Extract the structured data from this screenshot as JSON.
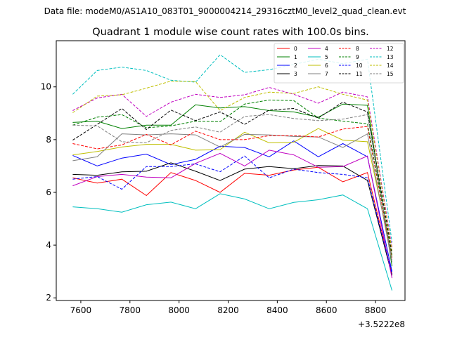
{
  "header_text": "Data file: modeM0/AS1A10_083T01_9000004214_29316cztM0_level2_quad_clean.evt",
  "chart_data": {
    "type": "line",
    "title": "Quadrant 1 module wise count rates with 100.0s bins.",
    "xlabel": "",
    "ylabel": "",
    "x_offset_label": "+3.5222e8",
    "x_offset": 352220000,
    "xlim": [
      352227500,
      352228920
    ],
    "ylim": [
      1.9,
      11.75
    ],
    "x_ticks": [
      7600,
      7800,
      8000,
      8200,
      8400,
      8600,
      8800
    ],
    "y_ticks": [
      2,
      4,
      6,
      8,
      10
    ],
    "grid": false,
    "legend_placement": "top-right",
    "x": [
      352227567,
      352227667,
      352227767,
      352227867,
      352227967,
      352228067,
      352228167,
      352228267,
      352228367,
      352228467,
      352228567,
      352228667,
      352228767,
      352228867
    ],
    "series": [
      {
        "name": "0",
        "color": "#ff0000",
        "dash": "solid",
        "values": [
          6.55,
          6.35,
          6.5,
          5.88,
          6.75,
          6.45,
          6.0,
          6.72,
          6.65,
          6.85,
          6.95,
          6.4,
          6.75,
          2.9
        ]
      },
      {
        "name": "1",
        "color": "#008000",
        "dash": "solid",
        "values": [
          8.65,
          8.7,
          8.42,
          8.55,
          8.55,
          9.32,
          9.2,
          9.25,
          9.1,
          9.05,
          8.85,
          9.35,
          9.3,
          3.2
        ]
      },
      {
        "name": "2",
        "color": "#0000ff",
        "dash": "solid",
        "values": [
          7.4,
          7.0,
          7.3,
          7.45,
          7.05,
          7.25,
          7.75,
          7.7,
          7.35,
          7.95,
          7.35,
          7.85,
          7.35,
          3.0
        ]
      },
      {
        "name": "3",
        "color": "#000000",
        "dash": "solid",
        "values": [
          6.68,
          6.65,
          6.78,
          6.8,
          7.12,
          6.8,
          6.45,
          6.88,
          6.98,
          6.9,
          7.02,
          7.0,
          6.45,
          2.85
        ]
      },
      {
        "name": "4",
        "color": "#c000c0",
        "dash": "solid",
        "values": [
          6.25,
          6.6,
          6.68,
          6.58,
          6.55,
          7.1,
          7.48,
          7.0,
          7.6,
          7.42,
          6.95,
          6.98,
          7.38,
          2.75
        ]
      },
      {
        "name": "5",
        "color": "#00bfbf",
        "dash": "solid",
        "values": [
          5.45,
          5.38,
          5.25,
          5.53,
          5.63,
          5.38,
          5.95,
          5.75,
          5.38,
          5.62,
          5.72,
          5.9,
          5.38,
          2.28
        ]
      },
      {
        "name": "6",
        "color": "#bfbf00",
        "dash": "solid",
        "values": [
          7.42,
          7.55,
          7.72,
          7.82,
          7.82,
          7.6,
          7.62,
          8.28,
          7.88,
          7.9,
          8.42,
          7.98,
          7.92,
          3.55
        ]
      },
      {
        "name": "7",
        "color": "#808080",
        "dash": "solid",
        "values": [
          7.2,
          7.35,
          8.22,
          8.18,
          8.22,
          8.18,
          7.72,
          8.2,
          8.18,
          8.12,
          8.1,
          7.7,
          8.22,
          3.35
        ]
      },
      {
        "name": "8",
        "color": "#ff0000",
        "dash": "dashed",
        "values": [
          7.85,
          7.65,
          7.8,
          8.2,
          7.8,
          8.32,
          8.0,
          8.0,
          8.15,
          8.15,
          8.1,
          8.4,
          8.5,
          3.5
        ]
      },
      {
        "name": "9",
        "color": "#008000",
        "dash": "dashed",
        "values": [
          8.55,
          8.85,
          8.95,
          8.45,
          8.52,
          8.7,
          8.68,
          9.35,
          9.5,
          9.48,
          8.82,
          8.7,
          8.6,
          3.6
        ]
      },
      {
        "name": "10",
        "color": "#0000ff",
        "dash": "dashed",
        "values": [
          6.5,
          6.6,
          6.12,
          6.98,
          6.98,
          7.08,
          6.78,
          7.38,
          6.55,
          6.88,
          6.75,
          6.68,
          6.55,
          2.92
        ]
      },
      {
        "name": "11",
        "color": "#000000",
        "dash": "dashed",
        "values": [
          7.98,
          8.58,
          9.18,
          8.38,
          9.12,
          8.72,
          9.05,
          8.58,
          9.12,
          9.18,
          8.82,
          9.42,
          9.05,
          3.7
        ]
      },
      {
        "name": "12",
        "color": "#c000c0",
        "dash": "dashed",
        "values": [
          9.1,
          9.58,
          9.72,
          8.88,
          9.42,
          9.72,
          9.6,
          9.7,
          9.98,
          9.72,
          9.38,
          9.8,
          9.62,
          3.9
        ]
      },
      {
        "name": "13",
        "color": "#00bfbf",
        "dash": "dashed",
        "values": [
          9.72,
          10.62,
          10.75,
          10.62,
          10.25,
          10.18,
          11.22,
          10.55,
          10.65,
          10.85,
          11.05,
          10.88,
          11.05,
          4.1
        ]
      },
      {
        "name": "14",
        "color": "#bfbf00",
        "dash": "dashed",
        "values": [
          9.02,
          9.65,
          9.7,
          9.95,
          10.22,
          10.2,
          9.1,
          9.6,
          9.8,
          9.75,
          10.0,
          9.72,
          9.5,
          3.8
        ]
      },
      {
        "name": "15",
        "color": "#808080",
        "dash": "dashed",
        "values": [
          8.55,
          8.52,
          7.92,
          7.88,
          8.35,
          8.48,
          8.28,
          8.88,
          8.95,
          8.8,
          8.72,
          8.78,
          8.95,
          3.45
        ]
      }
    ]
  }
}
